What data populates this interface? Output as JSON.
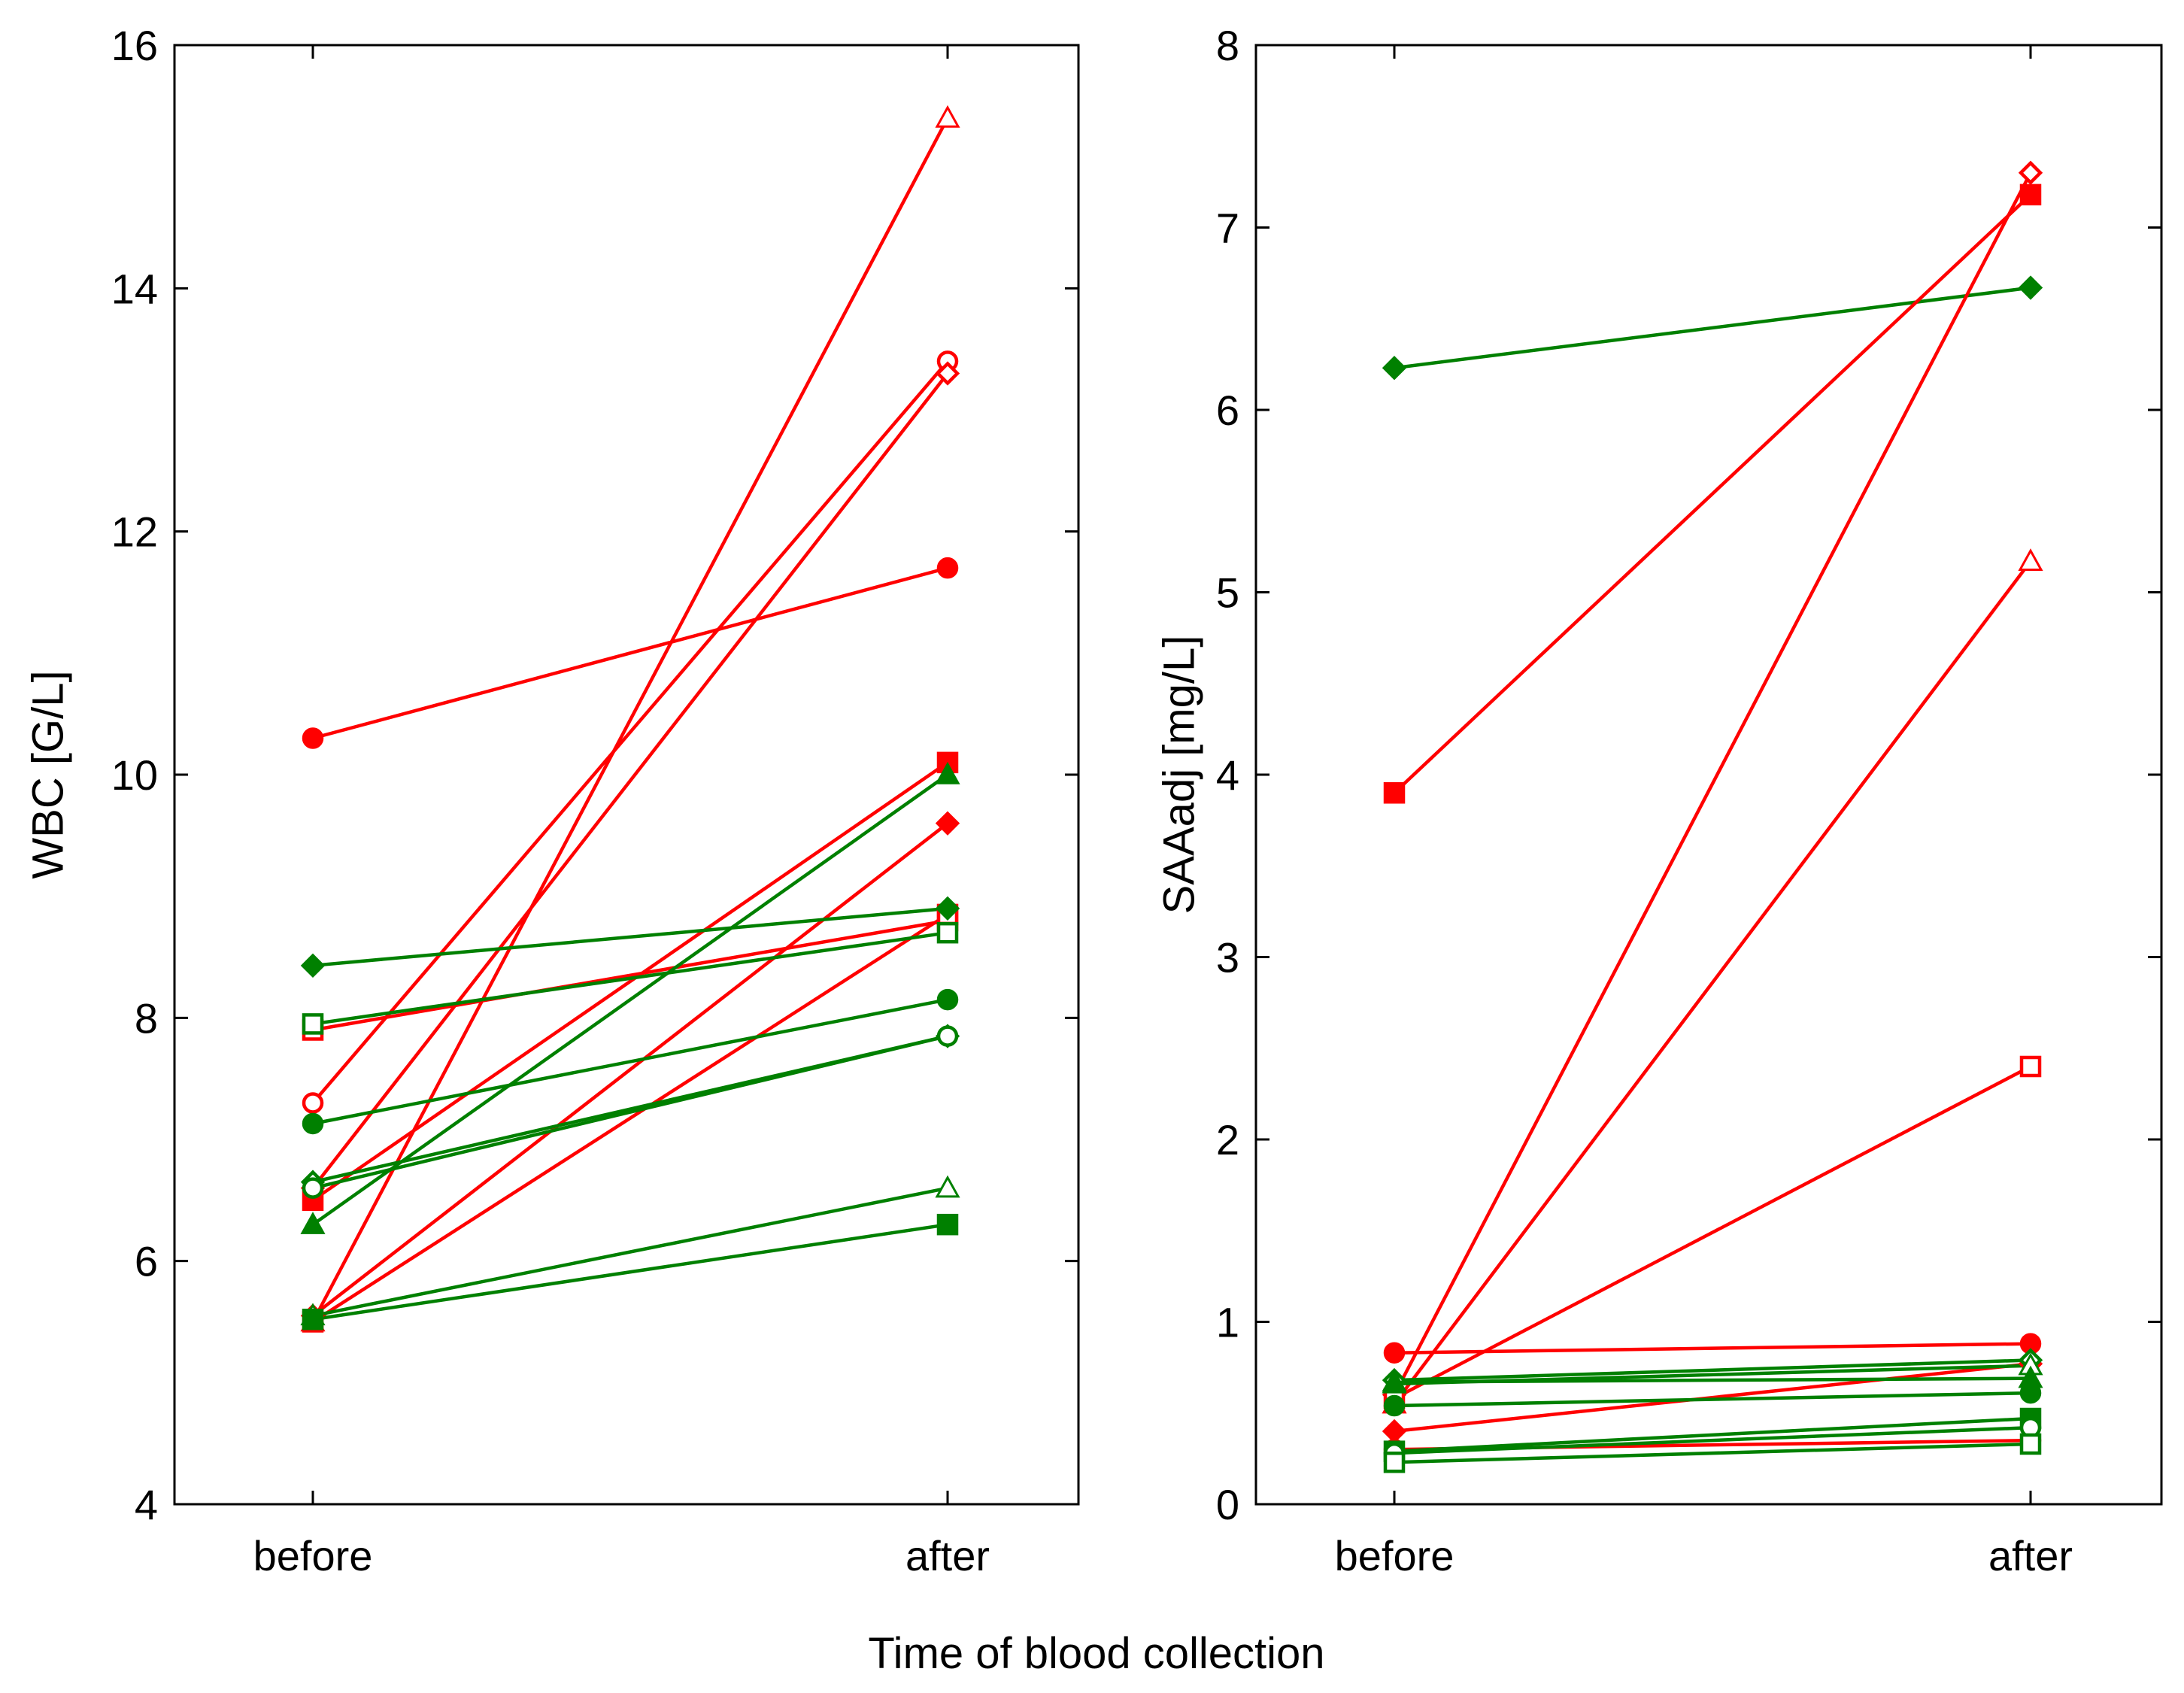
{
  "figure": {
    "xlabel": "Time of blood collection",
    "colors": {
      "red": "#ff0000",
      "green": "#008000",
      "axis": "#000000"
    }
  },
  "chart_data": [
    {
      "type": "line",
      "ylabel": "WBC [G/L]",
      "categories": [
        "before",
        "after"
      ],
      "ylim": [
        4,
        16
      ],
      "yticks": [
        "4",
        "6",
        "8",
        "10",
        "12",
        "14",
        "16"
      ],
      "series": [
        {
          "name": "red-open-triangle",
          "color": "red",
          "marker": "triangle-open",
          "values": [
            5.5,
            15.4
          ]
        },
        {
          "name": "red-open-circle",
          "color": "red",
          "marker": "circle-open",
          "values": [
            7.3,
            13.4
          ]
        },
        {
          "name": "red-open-diamond",
          "color": "red",
          "marker": "diamond-open",
          "values": [
            6.6,
            13.3
          ]
        },
        {
          "name": "red-filled-circle",
          "color": "red",
          "marker": "circle-filled",
          "values": [
            10.3,
            11.7
          ]
        },
        {
          "name": "red-filled-square",
          "color": "red",
          "marker": "square-filled",
          "values": [
            6.5,
            10.1
          ]
        },
        {
          "name": "red-filled-diamond",
          "color": "red",
          "marker": "diamond-filled",
          "values": [
            5.55,
            9.6
          ]
        },
        {
          "name": "red-open-square",
          "color": "red",
          "marker": "square-open",
          "values": [
            7.9,
            8.8
          ]
        },
        {
          "name": "red-small-square",
          "color": "red",
          "marker": "square-open",
          "values": [
            5.5,
            8.85
          ]
        },
        {
          "name": "green-filled-triangle",
          "color": "green",
          "marker": "triangle-filled",
          "values": [
            6.3,
            10.0
          ]
        },
        {
          "name": "green-filled-diamond",
          "color": "green",
          "marker": "diamond-filled",
          "values": [
            8.43,
            8.9
          ]
        },
        {
          "name": "green-open-square",
          "color": "green",
          "marker": "square-open",
          "values": [
            7.95,
            8.7
          ]
        },
        {
          "name": "green-filled-circle",
          "color": "green",
          "marker": "circle-filled",
          "values": [
            7.13,
            8.15
          ]
        },
        {
          "name": "green-open-diamond",
          "color": "green",
          "marker": "diamond-open",
          "values": [
            6.65,
            7.85
          ]
        },
        {
          "name": "green-open-circle",
          "color": "green",
          "marker": "circle-open",
          "values": [
            6.6,
            7.85
          ]
        },
        {
          "name": "green-open-triangle",
          "color": "green",
          "marker": "triangle-open",
          "values": [
            5.55,
            6.6
          ]
        },
        {
          "name": "green-filled-square",
          "color": "green",
          "marker": "square-filled",
          "values": [
            5.52,
            6.3
          ]
        }
      ]
    },
    {
      "type": "line",
      "ylabel": "SAAadj [mg/L]",
      "categories": [
        "before",
        "after"
      ],
      "ylim": [
        0,
        8
      ],
      "yticks": [
        "0",
        "1",
        "2",
        "3",
        "4",
        "5",
        "6",
        "7",
        "8"
      ],
      "series": [
        {
          "name": "green-filled-diamond",
          "color": "green",
          "marker": "diamond-filled",
          "values": [
            6.23,
            6.67
          ]
        },
        {
          "name": "red-filled-square",
          "color": "red",
          "marker": "square-filled",
          "values": [
            3.9,
            7.18
          ]
        },
        {
          "name": "red-open-diamond",
          "color": "red",
          "marker": "diamond-open",
          "values": [
            0.6,
            7.3
          ]
        },
        {
          "name": "red-open-triangle",
          "color": "red",
          "marker": "triangle-open",
          "values": [
            0.55,
            5.17
          ]
        },
        {
          "name": "red-open-square",
          "color": "red",
          "marker": "square-open",
          "values": [
            0.58,
            2.4
          ]
        },
        {
          "name": "red-filled-circle",
          "color": "red",
          "marker": "circle-filled",
          "values": [
            0.83,
            0.88
          ]
        },
        {
          "name": "red-filled-diamond",
          "color": "red",
          "marker": "diamond-filled",
          "values": [
            0.4,
            0.77
          ]
        },
        {
          "name": "red-open-circle",
          "color": "red",
          "marker": "circle-open",
          "values": [
            0.3,
            0.35
          ]
        },
        {
          "name": "green-open-diamond",
          "color": "green",
          "marker": "diamond-open",
          "values": [
            0.68,
            0.79
          ]
        },
        {
          "name": "green-open-triangle",
          "color": "green",
          "marker": "triangle-open",
          "values": [
            0.66,
            0.76
          ]
        },
        {
          "name": "green-filled-triangle",
          "color": "green",
          "marker": "triangle-filled",
          "values": [
            0.67,
            0.69
          ]
        },
        {
          "name": "green-filled-circle",
          "color": "green",
          "marker": "circle-filled",
          "values": [
            0.54,
            0.61
          ]
        },
        {
          "name": "green-filled-square",
          "color": "green",
          "marker": "square-filled",
          "values": [
            0.29,
            0.47
          ]
        },
        {
          "name": "green-open-circle",
          "color": "green",
          "marker": "circle-open",
          "values": [
            0.28,
            0.42
          ]
        },
        {
          "name": "green-open-square",
          "color": "green",
          "marker": "square-open",
          "values": [
            0.23,
            0.33
          ]
        }
      ]
    }
  ]
}
